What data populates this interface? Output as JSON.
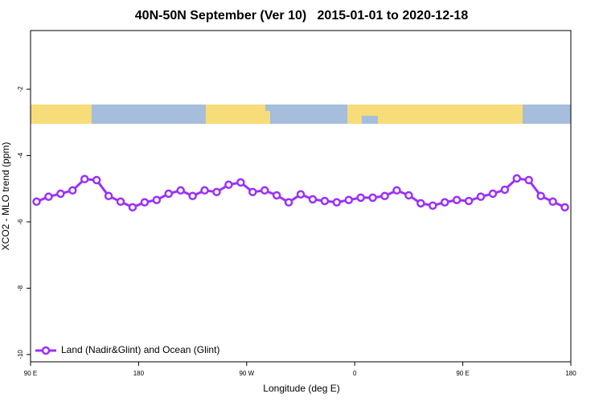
{
  "chart_data": {
    "type": "line",
    "title": "40N-50N September (Ver 10)   2015-01-01 to 2020-12-18",
    "x_label": "Longitude (deg E)",
    "y_label": "XCO2 - MLO trend (ppm)",
    "x": [
      95,
      105,
      115,
      125,
      135,
      145,
      155,
      165,
      175,
      185,
      195,
      205,
      215,
      225,
      235,
      245,
      255,
      265,
      275,
      285,
      295,
      305,
      315,
      325,
      335,
      345,
      355,
      365,
      375,
      385,
      395,
      405,
      415,
      425,
      435,
      445,
      455,
      465,
      475,
      485,
      495,
      505,
      515,
      525,
      535
    ],
    "series": [
      {
        "name": "Land (Nadir&Glint) and Ocean (Glint)",
        "color": "#9b30ff",
        "values": [
          -5.39,
          -5.24,
          -5.15,
          -5.05,
          -4.71,
          -4.74,
          -5.22,
          -5.39,
          -5.56,
          -5.41,
          -5.34,
          -5.15,
          -5.05,
          -5.22,
          -5.05,
          -5.1,
          -4.88,
          -4.81,
          -5.1,
          -5.05,
          -5.2,
          -5.41,
          -5.17,
          -5.32,
          -5.37,
          -5.41,
          -5.34,
          -5.27,
          -5.27,
          -5.22,
          -5.05,
          -5.2,
          -5.44,
          -5.51,
          -5.41,
          -5.34,
          -5.37,
          -5.24,
          -5.15,
          -5.03,
          -4.69,
          -4.74,
          -5.22,
          -5.39,
          -5.56
        ]
      }
    ],
    "xlim": [
      90,
      540
    ],
    "xticks": [
      {
        "value": 90,
        "label": "90 E"
      },
      180,
      {
        "value": 270,
        "label": "90 W"
      },
      {
        "value": 360,
        "label": "0"
      },
      {
        "value": 450,
        "label": "90 E"
      },
      {
        "value": 540,
        "label": "180"
      }
    ],
    "ylim": [
      -10.22,
      -0.23
    ],
    "yticks": [
      -2,
      -4,
      -6,
      -8,
      -10
    ],
    "legend": "bottom left"
  }
}
